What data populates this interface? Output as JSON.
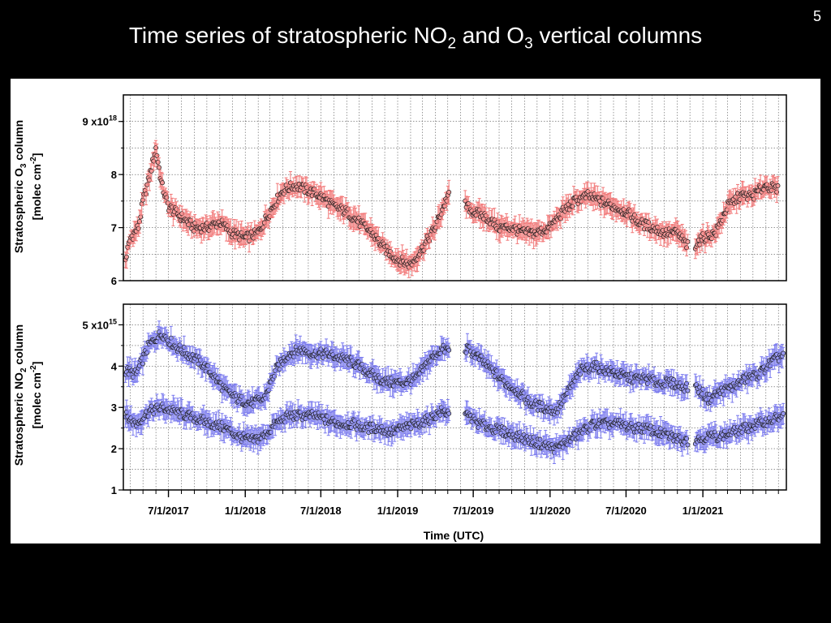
{
  "slide": {
    "number": "5",
    "title_parts": [
      "Time series of stratospheric NO",
      "2",
      " and O",
      "3",
      " vertical columns"
    ]
  },
  "colors": {
    "o3_fill": "#f59a9a",
    "o3_err": "#f27878",
    "no2_fill": "#9a9af2",
    "no2_err": "#7a7aee",
    "marker_edge": "#1a1a1a",
    "grid": "#555555"
  },
  "chart_data": [
    {
      "type": "scatter",
      "panel": "top",
      "ylabel_line1": [
        "Stratospheric O",
        "3",
        " column"
      ],
      "ylabel_line2": [
        "[molec cm",
        "-2",
        "]"
      ],
      "ylim": [
        6,
        9.5
      ],
      "yticks": [
        {
          "value": 6,
          "label": "6"
        },
        {
          "value": 7,
          "label": "7"
        },
        {
          "value": 8,
          "label": "8"
        },
        {
          "value": 9,
          "label": "9 x10",
          "exp": "18"
        }
      ],
      "grid": true,
      "series": [
        {
          "x": [
            "2017-03-20",
            "2017-04-01",
            "2017-04-20",
            "2017-05-01",
            "2017-05-15",
            "2017-06-01",
            "2017-06-15",
            "2017-07-01",
            "2017-08-01",
            "2017-09-01",
            "2017-10-01",
            "2017-11-01",
            "2017-12-01",
            "2018-01-01",
            "2018-02-01",
            "2018-03-01",
            "2018-04-01",
            "2018-05-01",
            "2018-06-01",
            "2018-07-01",
            "2018-08-01",
            "2018-09-01",
            "2018-10-01",
            "2018-11-01",
            "2018-12-01",
            "2019-01-01",
            "2019-02-01",
            "2019-03-01",
            "2019-04-01",
            "2019-05-01",
            "2019-06-01",
            "2019-07-01",
            "2019-08-01",
            "2019-09-01",
            "2019-10-01",
            "2019-11-01",
            "2019-12-01",
            "2020-01-01",
            "2020-02-01",
            "2020-03-01",
            "2020-04-01",
            "2020-05-01",
            "2020-06-01",
            "2020-07-01",
            "2020-08-01",
            "2020-09-01",
            "2020-10-01",
            "2020-11-01",
            "2020-12-01",
            "2021-01-01",
            "2021-02-01",
            "2021-03-01",
            "2021-04-01",
            "2021-05-01",
            "2021-06-01",
            "2021-07-01"
          ],
          "y": [
            6.4,
            6.8,
            7.0,
            7.5,
            7.9,
            8.5,
            7.8,
            7.4,
            7.2,
            7.0,
            7.0,
            7.1,
            6.9,
            6.8,
            6.9,
            7.3,
            7.7,
            7.8,
            7.7,
            7.6,
            7.4,
            7.3,
            7.1,
            6.9,
            6.6,
            6.4,
            6.3,
            6.6,
            7.0,
            7.6,
            7.5,
            7.3,
            7.2,
            7.0,
            7.0,
            6.9,
            6.9,
            7.0,
            7.3,
            7.5,
            7.6,
            7.5,
            7.4,
            7.3,
            7.1,
            7.0,
            6.9,
            6.9,
            6.6,
            6.8,
            6.9,
            7.4,
            7.6,
            7.6,
            7.8,
            7.7
          ]
        }
      ]
    },
    {
      "type": "scatter",
      "panel": "bottom",
      "ylabel_line1": [
        "Stratospheric NO",
        "2",
        " column"
      ],
      "ylabel_line2": [
        "[molec cm",
        "-2",
        "]"
      ],
      "ylim": [
        1,
        5.5
      ],
      "yticks": [
        {
          "value": 1,
          "label": "1"
        },
        {
          "value": 2,
          "label": "2"
        },
        {
          "value": 3,
          "label": "3"
        },
        {
          "value": 4,
          "label": "4"
        },
        {
          "value": 5,
          "label": "5 x10",
          "exp": "15"
        }
      ],
      "xlabel": "Time (UTC)",
      "xlim": [
        "2017-03-15",
        "2021-07-20"
      ],
      "xticks": [
        {
          "date": "2017-07-01",
          "label": "7/1/2017"
        },
        {
          "date": "2018-01-01",
          "label": "1/1/2018"
        },
        {
          "date": "2018-07-01",
          "label": "7/1/2018"
        },
        {
          "date": "2019-01-01",
          "label": "1/1/2019"
        },
        {
          "date": "2019-07-01",
          "label": "7/1/2019"
        },
        {
          "date": "2020-01-01",
          "label": "1/1/2020"
        },
        {
          "date": "2020-07-01",
          "label": "7/1/2020"
        },
        {
          "date": "2021-01-01",
          "label": "1/1/2021"
        }
      ],
      "grid": true,
      "series": [
        {
          "x": [
            "2017-03-20",
            "2017-04-15",
            "2017-05-15",
            "2017-06-15",
            "2017-07-15",
            "2017-08-15",
            "2017-09-15",
            "2017-10-15",
            "2017-11-15",
            "2017-12-15",
            "2018-01-15",
            "2018-02-15",
            "2018-03-15",
            "2018-04-15",
            "2018-05-15",
            "2018-06-15",
            "2018-07-15",
            "2018-08-15",
            "2018-09-15",
            "2018-10-15",
            "2018-11-15",
            "2018-12-15",
            "2019-01-15",
            "2019-02-15",
            "2019-03-15",
            "2019-04-15",
            "2019-06-20",
            "2019-07-15",
            "2019-08-15",
            "2019-09-15",
            "2019-10-15",
            "2019-11-15",
            "2019-12-15",
            "2020-01-15",
            "2020-02-15",
            "2020-03-15",
            "2020-04-15",
            "2020-05-15",
            "2020-06-15",
            "2020-07-15",
            "2020-08-15",
            "2020-09-15",
            "2020-10-15",
            "2020-11-15",
            "2020-12-15",
            "2021-01-15",
            "2021-02-15",
            "2021-03-15",
            "2021-04-15",
            "2021-05-15",
            "2021-06-15",
            "2021-07-15"
          ],
          "y": [
            3.9,
            3.8,
            4.5,
            4.8,
            4.5,
            4.3,
            4.1,
            3.8,
            3.4,
            3.2,
            3.1,
            3.2,
            3.9,
            4.3,
            4.4,
            4.3,
            4.3,
            4.2,
            4.1,
            3.9,
            3.7,
            3.6,
            3.6,
            3.7,
            4.1,
            4.4,
            4.4,
            4.2,
            3.9,
            3.6,
            3.4,
            3.1,
            3.0,
            2.9,
            3.4,
            3.9,
            4.0,
            3.9,
            3.8,
            3.7,
            3.7,
            3.6,
            3.6,
            3.5,
            3.5,
            3.2,
            3.4,
            3.5,
            3.7,
            3.8,
            4.1,
            4.3
          ]
        },
        {
          "x": [
            "2017-03-20",
            "2017-04-15",
            "2017-05-15",
            "2017-06-15",
            "2017-07-15",
            "2017-08-15",
            "2017-09-15",
            "2017-10-15",
            "2017-11-15",
            "2017-12-15",
            "2018-01-15",
            "2018-02-15",
            "2018-03-15",
            "2018-04-15",
            "2018-05-15",
            "2018-06-15",
            "2018-07-15",
            "2018-08-15",
            "2018-09-15",
            "2018-10-15",
            "2018-11-15",
            "2018-12-15",
            "2019-01-15",
            "2019-02-15",
            "2019-03-15",
            "2019-04-15",
            "2019-06-20",
            "2019-07-15",
            "2019-08-15",
            "2019-09-15",
            "2019-10-15",
            "2019-11-15",
            "2019-12-15",
            "2020-01-15",
            "2020-02-15",
            "2020-03-15",
            "2020-04-15",
            "2020-05-15",
            "2020-06-15",
            "2020-07-15",
            "2020-08-15",
            "2020-09-15",
            "2020-10-15",
            "2020-11-15",
            "2020-12-15",
            "2021-01-15",
            "2021-02-15",
            "2021-03-15",
            "2021-04-15",
            "2021-05-15",
            "2021-06-15",
            "2021-07-15"
          ],
          "y": [
            2.8,
            2.6,
            2.9,
            3.0,
            2.9,
            2.8,
            2.7,
            2.6,
            2.5,
            2.3,
            2.2,
            2.3,
            2.6,
            2.8,
            2.8,
            2.8,
            2.7,
            2.6,
            2.6,
            2.5,
            2.5,
            2.4,
            2.5,
            2.6,
            2.7,
            2.9,
            2.8,
            2.6,
            2.5,
            2.4,
            2.3,
            2.2,
            2.1,
            2.0,
            2.2,
            2.4,
            2.6,
            2.6,
            2.6,
            2.5,
            2.5,
            2.4,
            2.3,
            2.2,
            2.2,
            2.3,
            2.3,
            2.4,
            2.5,
            2.6,
            2.7,
            2.8
          ]
        }
      ]
    }
  ]
}
